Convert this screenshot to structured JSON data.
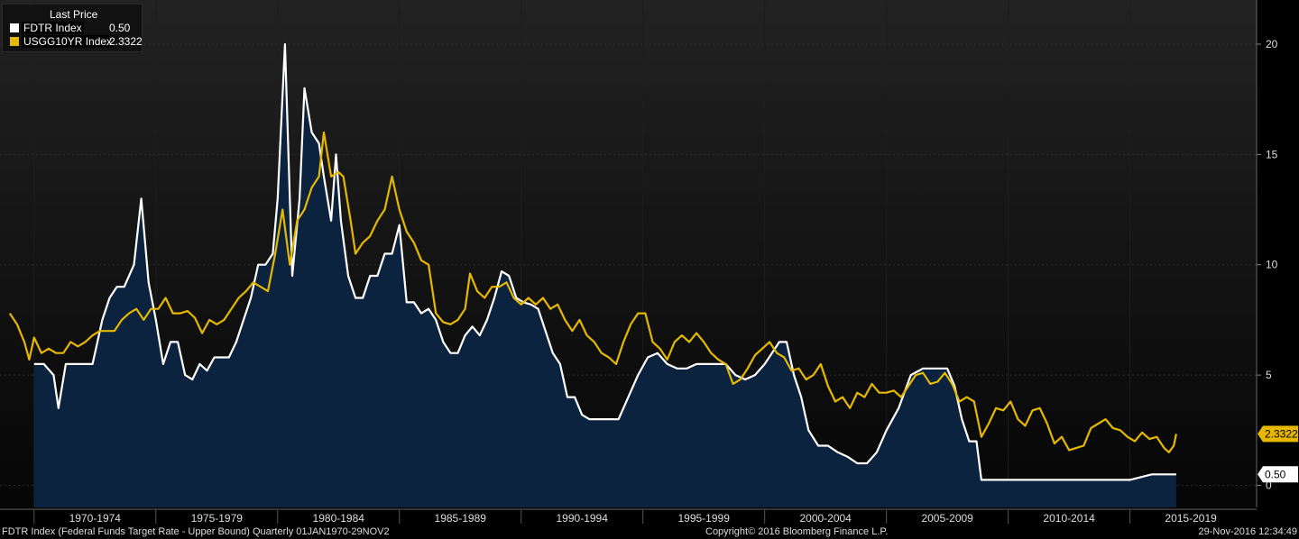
{
  "chart_data": {
    "type": "area",
    "title": "",
    "legend": {
      "title": "Last Price",
      "placement": "top-left",
      "entries": [
        {
          "name": "FDTR Index",
          "last": "0.50",
          "color": "#ffffff"
        },
        {
          "name": "USGG10YR Index",
          "last": "2.3322",
          "color": "#e6b800"
        }
      ]
    },
    "x_tick_labels": [
      "1970-1974",
      "1975-1979",
      "1980-1984",
      "1985-1989",
      "1990-1994",
      "1995-1999",
      "2000-2004",
      "2005-2009",
      "2010-2014",
      "2015-2019"
    ],
    "y_ticks": [
      0,
      5,
      10,
      15,
      20
    ],
    "ylim": [
      -1,
      22
    ],
    "xlim": [
      1968.6,
      2020.2
    ],
    "grid": true,
    "series": [
      {
        "name": "FDTR Index",
        "color": "#ffffff",
        "fill": "#0c2340",
        "points": [
          [
            1970.0,
            5.5
          ],
          [
            1970.4,
            5.5
          ],
          [
            1970.8,
            5.0
          ],
          [
            1971.0,
            3.5
          ],
          [
            1971.3,
            5.5
          ],
          [
            1971.6,
            5.5
          ],
          [
            1972.0,
            5.5
          ],
          [
            1972.4,
            5.5
          ],
          [
            1972.8,
            7.5
          ],
          [
            1973.1,
            8.5
          ],
          [
            1973.4,
            9.0
          ],
          [
            1973.7,
            9.0
          ],
          [
            1974.1,
            10.0
          ],
          [
            1974.4,
            13.0
          ],
          [
            1974.7,
            9.2
          ],
          [
            1975.0,
            7.5
          ],
          [
            1975.3,
            5.5
          ],
          [
            1975.6,
            6.5
          ],
          [
            1975.9,
            6.5
          ],
          [
            1976.2,
            5.0
          ],
          [
            1976.5,
            4.8
          ],
          [
            1976.8,
            5.5
          ],
          [
            1977.1,
            5.2
          ],
          [
            1977.4,
            5.8
          ],
          [
            1977.7,
            5.8
          ],
          [
            1978.0,
            5.8
          ],
          [
            1978.3,
            6.5
          ],
          [
            1978.6,
            7.5
          ],
          [
            1978.9,
            8.5
          ],
          [
            1979.2,
            10.0
          ],
          [
            1979.5,
            10.0
          ],
          [
            1979.8,
            10.5
          ],
          [
            1980.0,
            13.0
          ],
          [
            1980.3,
            20.0
          ],
          [
            1980.6,
            9.5
          ],
          [
            1980.9,
            13.0
          ],
          [
            1981.1,
            18.0
          ],
          [
            1981.4,
            16.0
          ],
          [
            1981.7,
            15.5
          ],
          [
            1981.9,
            14.0
          ],
          [
            1982.2,
            12.0
          ],
          [
            1982.4,
            15.0
          ],
          [
            1982.6,
            12.0
          ],
          [
            1982.9,
            9.5
          ],
          [
            1983.2,
            8.5
          ],
          [
            1983.5,
            8.5
          ],
          [
            1983.8,
            9.5
          ],
          [
            1984.1,
            9.5
          ],
          [
            1984.4,
            10.5
          ],
          [
            1984.7,
            10.5
          ],
          [
            1985.0,
            11.8
          ],
          [
            1985.3,
            8.3
          ],
          [
            1985.6,
            8.3
          ],
          [
            1985.9,
            7.8
          ],
          [
            1986.2,
            8.0
          ],
          [
            1986.5,
            7.5
          ],
          [
            1986.8,
            6.5
          ],
          [
            1987.1,
            6.0
          ],
          [
            1987.4,
            6.0
          ],
          [
            1987.7,
            6.8
          ],
          [
            1988.0,
            7.2
          ],
          [
            1988.3,
            6.8
          ],
          [
            1988.6,
            7.5
          ],
          [
            1988.9,
            8.5
          ],
          [
            1989.2,
            9.7
          ],
          [
            1989.5,
            9.5
          ],
          [
            1989.8,
            8.5
          ],
          [
            1990.1,
            8.3
          ],
          [
            1990.4,
            8.2
          ],
          [
            1990.7,
            8.0
          ],
          [
            1991.0,
            7.0
          ],
          [
            1991.3,
            6.0
          ],
          [
            1991.6,
            5.5
          ],
          [
            1991.9,
            4.0
          ],
          [
            1992.2,
            4.0
          ],
          [
            1992.5,
            3.2
          ],
          [
            1992.8,
            3.0
          ],
          [
            1993.1,
            3.0
          ],
          [
            1993.4,
            3.0
          ],
          [
            1993.7,
            3.0
          ],
          [
            1994.0,
            3.0
          ],
          [
            1994.4,
            4.0
          ],
          [
            1994.8,
            5.0
          ],
          [
            1995.2,
            5.8
          ],
          [
            1995.6,
            6.0
          ],
          [
            1996.0,
            5.5
          ],
          [
            1996.4,
            5.3
          ],
          [
            1996.8,
            5.3
          ],
          [
            1997.2,
            5.5
          ],
          [
            1997.6,
            5.5
          ],
          [
            1998.0,
            5.5
          ],
          [
            1998.4,
            5.5
          ],
          [
            1998.8,
            5.0
          ],
          [
            1999.2,
            4.8
          ],
          [
            1999.6,
            5.0
          ],
          [
            2000.0,
            5.5
          ],
          [
            2000.3,
            6.0
          ],
          [
            2000.6,
            6.5
          ],
          [
            2000.9,
            6.5
          ],
          [
            2001.2,
            5.0
          ],
          [
            2001.5,
            4.0
          ],
          [
            2001.8,
            2.5
          ],
          [
            2002.2,
            1.8
          ],
          [
            2002.6,
            1.8
          ],
          [
            2003.0,
            1.5
          ],
          [
            2003.4,
            1.3
          ],
          [
            2003.8,
            1.0
          ],
          [
            2004.2,
            1.0
          ],
          [
            2004.6,
            1.5
          ],
          [
            2005.0,
            2.5
          ],
          [
            2005.5,
            3.5
          ],
          [
            2006.0,
            5.0
          ],
          [
            2006.5,
            5.3
          ],
          [
            2007.0,
            5.3
          ],
          [
            2007.5,
            5.3
          ],
          [
            2007.8,
            4.5
          ],
          [
            2008.1,
            3.0
          ],
          [
            2008.4,
            2.0
          ],
          [
            2008.7,
            2.0
          ],
          [
            2008.9,
            0.25
          ],
          [
            2010.0,
            0.25
          ],
          [
            2011.0,
            0.25
          ],
          [
            2012.0,
            0.25
          ],
          [
            2013.0,
            0.25
          ],
          [
            2014.0,
            0.25
          ],
          [
            2015.0,
            0.25
          ],
          [
            2015.9,
            0.5
          ],
          [
            2016.9,
            0.5
          ]
        ]
      },
      {
        "name": "USGG10YR Index",
        "color": "#e6b800",
        "points": [
          [
            1969.0,
            7.8
          ],
          [
            1969.3,
            7.3
          ],
          [
            1969.6,
            6.5
          ],
          [
            1969.8,
            5.7
          ],
          [
            1970.0,
            6.7
          ],
          [
            1970.3,
            6.0
          ],
          [
            1970.6,
            6.2
          ],
          [
            1970.9,
            6.0
          ],
          [
            1971.2,
            6.0
          ],
          [
            1971.5,
            6.5
          ],
          [
            1971.8,
            6.3
          ],
          [
            1972.1,
            6.5
          ],
          [
            1972.4,
            6.8
          ],
          [
            1972.7,
            7.0
          ],
          [
            1973.0,
            7.0
          ],
          [
            1973.3,
            7.0
          ],
          [
            1973.6,
            7.5
          ],
          [
            1973.9,
            7.8
          ],
          [
            1974.2,
            8.0
          ],
          [
            1974.5,
            7.5
          ],
          [
            1974.8,
            8.0
          ],
          [
            1975.1,
            8.0
          ],
          [
            1975.4,
            8.5
          ],
          [
            1975.7,
            7.8
          ],
          [
            1976.0,
            7.8
          ],
          [
            1976.3,
            7.9
          ],
          [
            1976.6,
            7.6
          ],
          [
            1976.9,
            6.9
          ],
          [
            1977.2,
            7.5
          ],
          [
            1977.5,
            7.3
          ],
          [
            1977.8,
            7.5
          ],
          [
            1978.1,
            8.0
          ],
          [
            1978.4,
            8.5
          ],
          [
            1978.7,
            8.8
          ],
          [
            1979.0,
            9.2
          ],
          [
            1979.3,
            9.0
          ],
          [
            1979.6,
            8.8
          ],
          [
            1979.9,
            10.5
          ],
          [
            1980.2,
            12.5
          ],
          [
            1980.5,
            10.0
          ],
          [
            1980.8,
            12.0
          ],
          [
            1981.1,
            12.5
          ],
          [
            1981.4,
            13.5
          ],
          [
            1981.7,
            14.0
          ],
          [
            1981.9,
            16.0
          ],
          [
            1982.2,
            14.0
          ],
          [
            1982.5,
            14.2
          ],
          [
            1982.7,
            14.0
          ],
          [
            1983.0,
            12.0
          ],
          [
            1983.2,
            10.5
          ],
          [
            1983.5,
            11.0
          ],
          [
            1983.8,
            11.3
          ],
          [
            1984.1,
            12.0
          ],
          [
            1984.4,
            12.5
          ],
          [
            1984.7,
            14.0
          ],
          [
            1985.0,
            12.5
          ],
          [
            1985.3,
            11.5
          ],
          [
            1985.6,
            11.0
          ],
          [
            1985.9,
            10.2
          ],
          [
            1986.2,
            10.0
          ],
          [
            1986.5,
            7.8
          ],
          [
            1986.8,
            7.4
          ],
          [
            1987.1,
            7.3
          ],
          [
            1987.4,
            7.5
          ],
          [
            1987.7,
            8.0
          ],
          [
            1987.9,
            9.6
          ],
          [
            1988.2,
            8.8
          ],
          [
            1988.5,
            8.5
          ],
          [
            1988.8,
            9.0
          ],
          [
            1989.1,
            9.0
          ],
          [
            1989.4,
            9.2
          ],
          [
            1989.7,
            8.5
          ],
          [
            1990.0,
            8.2
          ],
          [
            1990.3,
            8.5
          ],
          [
            1990.6,
            8.2
          ],
          [
            1990.9,
            8.5
          ],
          [
            1991.2,
            8.0
          ],
          [
            1991.5,
            8.2
          ],
          [
            1991.8,
            7.5
          ],
          [
            1992.1,
            7.0
          ],
          [
            1992.4,
            7.5
          ],
          [
            1992.7,
            6.8
          ],
          [
            1993.0,
            6.5
          ],
          [
            1993.3,
            6.0
          ],
          [
            1993.6,
            5.8
          ],
          [
            1993.9,
            5.5
          ],
          [
            1994.2,
            6.5
          ],
          [
            1994.5,
            7.3
          ],
          [
            1994.8,
            7.8
          ],
          [
            1995.1,
            7.8
          ],
          [
            1995.4,
            6.5
          ],
          [
            1995.7,
            6.2
          ],
          [
            1996.0,
            5.7
          ],
          [
            1996.3,
            6.5
          ],
          [
            1996.6,
            6.8
          ],
          [
            1996.9,
            6.5
          ],
          [
            1997.2,
            6.9
          ],
          [
            1997.5,
            6.5
          ],
          [
            1997.8,
            6.0
          ],
          [
            1998.1,
            5.7
          ],
          [
            1998.4,
            5.5
          ],
          [
            1998.7,
            4.6
          ],
          [
            1999.0,
            4.8
          ],
          [
            1999.3,
            5.3
          ],
          [
            1999.6,
            5.9
          ],
          [
            1999.9,
            6.2
          ],
          [
            2000.2,
            6.5
          ],
          [
            2000.5,
            6.0
          ],
          [
            2000.8,
            5.8
          ],
          [
            2001.1,
            5.2
          ],
          [
            2001.4,
            5.3
          ],
          [
            2001.7,
            4.8
          ],
          [
            2002.0,
            5.0
          ],
          [
            2002.3,
            5.5
          ],
          [
            2002.6,
            4.5
          ],
          [
            2002.9,
            3.8
          ],
          [
            2003.2,
            4.0
          ],
          [
            2003.5,
            3.5
          ],
          [
            2003.8,
            4.2
          ],
          [
            2004.1,
            4.0
          ],
          [
            2004.4,
            4.6
          ],
          [
            2004.7,
            4.2
          ],
          [
            2005.0,
            4.2
          ],
          [
            2005.3,
            4.3
          ],
          [
            2005.6,
            4.0
          ],
          [
            2005.9,
            4.5
          ],
          [
            2006.2,
            5.0
          ],
          [
            2006.5,
            5.1
          ],
          [
            2006.8,
            4.6
          ],
          [
            2007.1,
            4.7
          ],
          [
            2007.4,
            5.1
          ],
          [
            2007.7,
            4.6
          ],
          [
            2008.0,
            3.8
          ],
          [
            2008.3,
            4.0
          ],
          [
            2008.6,
            3.8
          ],
          [
            2008.9,
            2.2
          ],
          [
            2009.2,
            2.8
          ],
          [
            2009.5,
            3.5
          ],
          [
            2009.8,
            3.4
          ],
          [
            2010.1,
            3.8
          ],
          [
            2010.4,
            3.0
          ],
          [
            2010.7,
            2.7
          ],
          [
            2011.0,
            3.4
          ],
          [
            2011.3,
            3.5
          ],
          [
            2011.6,
            2.8
          ],
          [
            2011.9,
            1.9
          ],
          [
            2012.2,
            2.2
          ],
          [
            2012.5,
            1.6
          ],
          [
            2012.8,
            1.7
          ],
          [
            2013.1,
            1.8
          ],
          [
            2013.4,
            2.6
          ],
          [
            2013.7,
            2.8
          ],
          [
            2014.0,
            3.0
          ],
          [
            2014.3,
            2.6
          ],
          [
            2014.6,
            2.5
          ],
          [
            2014.9,
            2.2
          ],
          [
            2015.2,
            2.0
          ],
          [
            2015.5,
            2.4
          ],
          [
            2015.8,
            2.1
          ],
          [
            2016.1,
            2.2
          ],
          [
            2016.4,
            1.7
          ],
          [
            2016.6,
            1.5
          ],
          [
            2016.8,
            1.8
          ],
          [
            2016.9,
            2.3322
          ]
        ]
      }
    ]
  },
  "footer": {
    "left": "FDTR Index (Federal Funds Target Rate - Upper Bound)  Quarterly 01JAN1970-29NOV2",
    "center": "Copyright© 2016 Bloomberg Finance L.P.",
    "right": "29-Nov-2016 12:34:49"
  }
}
